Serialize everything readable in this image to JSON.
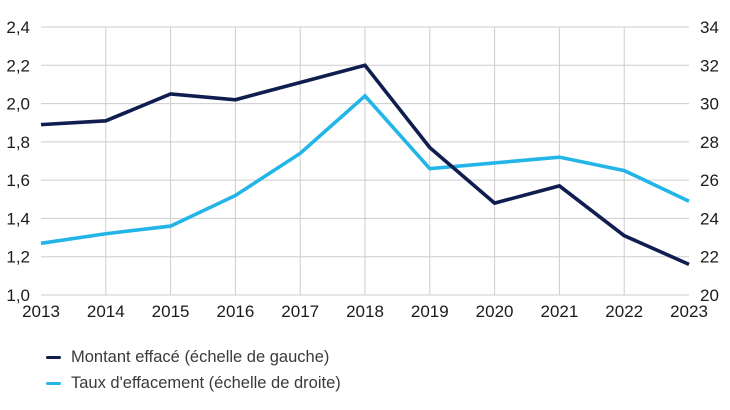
{
  "chart_data": {
    "type": "line",
    "x": [
      "2013",
      "2014",
      "2015",
      "2016",
      "2017",
      "2018",
      "2019",
      "2020",
      "2021",
      "2022",
      "2023"
    ],
    "series": [
      {
        "id": "montant-efface",
        "name": "Montant effacé (échelle de gauche)",
        "axis": "left",
        "color": "#101d4f",
        "values": [
          1.89,
          1.91,
          2.05,
          2.02,
          2.11,
          2.2,
          1.77,
          1.48,
          1.57,
          1.31,
          1.16
        ]
      },
      {
        "id": "taux-effacement",
        "name": "Taux d'effacement (échelle de droite)",
        "axis": "right",
        "color": "#24b5e8",
        "values": [
          22.7,
          23.2,
          23.6,
          25.2,
          27.4,
          30.4,
          26.6,
          26.9,
          27.2,
          26.5,
          24.9
        ]
      }
    ],
    "left_axis": {
      "min": 1.0,
      "max": 2.4,
      "step": 0.2,
      "tick_labels": [
        "2,4",
        "2,2",
        "2,0",
        "1,8",
        "1,6",
        "1,4",
        "1,2",
        "1,0"
      ]
    },
    "right_axis": {
      "min": 20,
      "max": 34,
      "step": 2,
      "tick_labels": [
        "34",
        "32",
        "30",
        "28",
        "26",
        "24",
        "22",
        "20"
      ]
    },
    "grid": true,
    "grid_color": "#cdcdcd",
    "legend_position": "bottom-left",
    "title": "",
    "xlabel": "",
    "ylabel": ""
  }
}
